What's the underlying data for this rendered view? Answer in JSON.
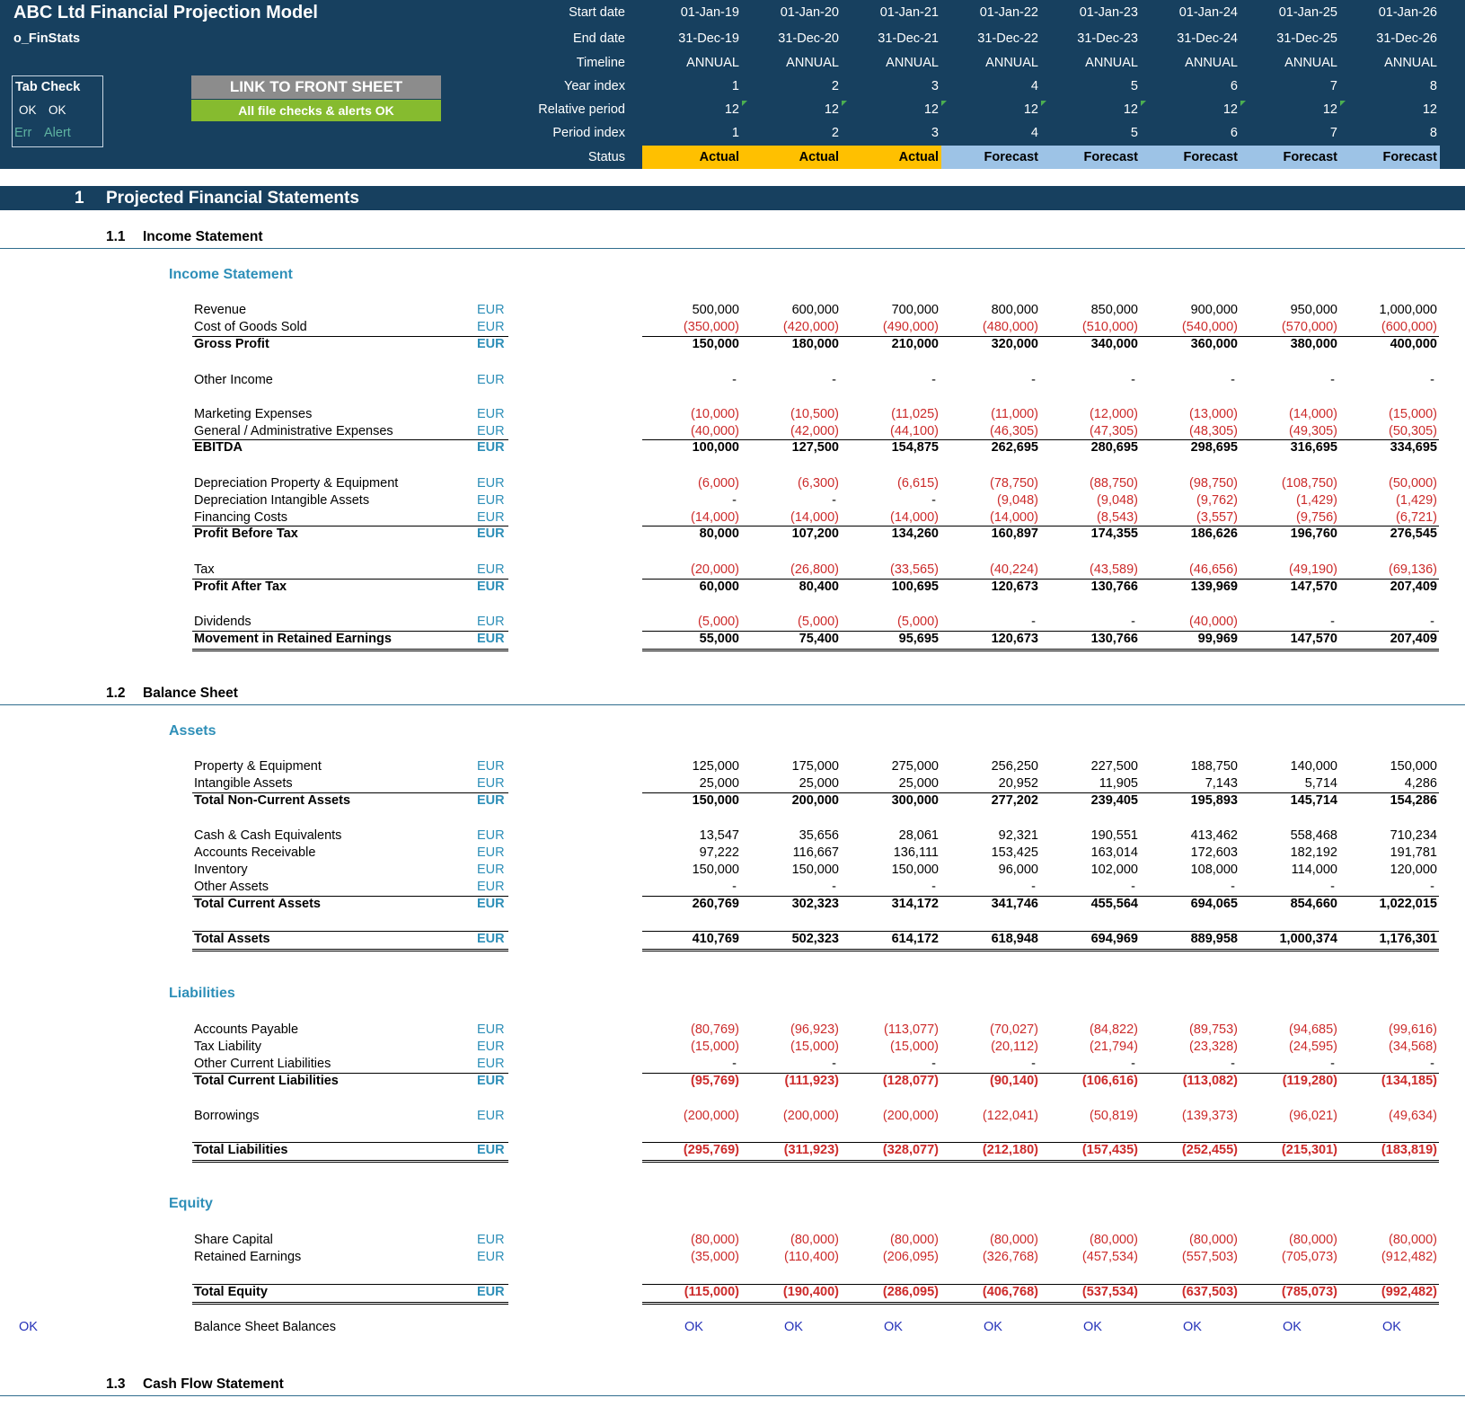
{
  "header": {
    "title": "ABC Ltd Financial Projection Model",
    "sheet_name": "o_FinStats",
    "tab_check": {
      "label": "Tab Check",
      "ok1": "OK",
      "ok2": "OK",
      "err": "Err",
      "alert": "Alert"
    },
    "link_button": "LINK TO FRONT SHEET",
    "checks_status": "All file checks & alerts OK",
    "row_labels": [
      "Start date",
      "End date",
      "Timeline",
      "Year index",
      "Relative period",
      "Period index",
      "Status"
    ],
    "start_dates": [
      "01-Jan-19",
      "01-Jan-20",
      "01-Jan-21",
      "01-Jan-22",
      "01-Jan-23",
      "01-Jan-24",
      "01-Jan-25",
      "01-Jan-26"
    ],
    "end_dates": [
      "31-Dec-19",
      "31-Dec-20",
      "31-Dec-21",
      "31-Dec-22",
      "31-Dec-23",
      "31-Dec-24",
      "31-Dec-25",
      "31-Dec-26"
    ],
    "timeline": [
      "ANNUAL",
      "ANNUAL",
      "ANNUAL",
      "ANNUAL",
      "ANNUAL",
      "ANNUAL",
      "ANNUAL",
      "ANNUAL"
    ],
    "year_index": [
      "1",
      "2",
      "3",
      "4",
      "5",
      "6",
      "7",
      "8"
    ],
    "relative_period": [
      "12",
      "12",
      "12",
      "12",
      "12",
      "12",
      "12",
      "12"
    ],
    "period_index": [
      "1",
      "2",
      "3",
      "4",
      "5",
      "6",
      "7",
      "8"
    ],
    "status": [
      "Actual",
      "Actual",
      "Actual",
      "Forecast",
      "Forecast",
      "Forecast",
      "Forecast",
      "Forecast"
    ]
  },
  "colors": {
    "header_bg": "#17405f",
    "actual": "#ffc000",
    "forecast": "#9dc3e6",
    "negative": "#cc2b2b",
    "unit": "#2e8fb8",
    "ok": "#2431b8",
    "button_grey": "#8c8c8c",
    "button_green": "#86bb2f"
  },
  "section": {
    "number": "1",
    "title": "Projected Financial Statements"
  },
  "income": {
    "sub_number": "1.1",
    "sub_title": "Income Statement",
    "group": "Income Statement",
    "rows": [
      {
        "label": "Revenue",
        "unit": "EUR",
        "values": [
          "500,000",
          "600,000",
          "700,000",
          "800,000",
          "850,000",
          "900,000",
          "950,000",
          "1,000,000"
        ]
      },
      {
        "label": "Cost of Goods Sold",
        "unit": "EUR",
        "values": [
          "(350,000)",
          "(420,000)",
          "(490,000)",
          "(480,000)",
          "(510,000)",
          "(540,000)",
          "(570,000)",
          "(600,000)"
        ]
      },
      {
        "label": "Gross Profit",
        "unit": "EUR",
        "values": [
          "150,000",
          "180,000",
          "210,000",
          "320,000",
          "340,000",
          "360,000",
          "380,000",
          "400,000"
        ]
      },
      {
        "label": "Other Income",
        "unit": "EUR",
        "values": [
          "-",
          "-",
          "-",
          "-",
          "-",
          "-",
          "-",
          "-"
        ]
      },
      {
        "label": "Marketing Expenses",
        "unit": "EUR",
        "values": [
          "(10,000)",
          "(10,500)",
          "(11,025)",
          "(11,000)",
          "(12,000)",
          "(13,000)",
          "(14,000)",
          "(15,000)"
        ]
      },
      {
        "label": "General / Administrative Expenses",
        "unit": "EUR",
        "values": [
          "(40,000)",
          "(42,000)",
          "(44,100)",
          "(46,305)",
          "(47,305)",
          "(48,305)",
          "(49,305)",
          "(50,305)"
        ]
      },
      {
        "label": "EBITDA",
        "unit": "EUR",
        "values": [
          "100,000",
          "127,500",
          "154,875",
          "262,695",
          "280,695",
          "298,695",
          "316,695",
          "334,695"
        ]
      },
      {
        "label": "Depreciation Property & Equipment",
        "unit": "EUR",
        "values": [
          "(6,000)",
          "(6,300)",
          "(6,615)",
          "(78,750)",
          "(88,750)",
          "(98,750)",
          "(108,750)",
          "(50,000)"
        ]
      },
      {
        "label": "Depreciation Intangible Assets",
        "unit": "EUR",
        "values": [
          "-",
          "-",
          "-",
          "(9,048)",
          "(9,048)",
          "(9,762)",
          "(1,429)",
          "(1,429)"
        ]
      },
      {
        "label": "Financing Costs",
        "unit": "EUR",
        "values": [
          "(14,000)",
          "(14,000)",
          "(14,000)",
          "(14,000)",
          "(8,543)",
          "(3,557)",
          "(9,756)",
          "(6,721)"
        ]
      },
      {
        "label": "Profit Before Tax",
        "unit": "EUR",
        "values": [
          "80,000",
          "107,200",
          "134,260",
          "160,897",
          "174,355",
          "186,626",
          "196,760",
          "276,545"
        ]
      },
      {
        "label": "Tax",
        "unit": "EUR",
        "values": [
          "(20,000)",
          "(26,800)",
          "(33,565)",
          "(40,224)",
          "(43,589)",
          "(46,656)",
          "(49,190)",
          "(69,136)"
        ]
      },
      {
        "label": "Profit After Tax",
        "unit": "EUR",
        "values": [
          "60,000",
          "80,400",
          "100,695",
          "120,673",
          "130,766",
          "139,969",
          "147,570",
          "207,409"
        ]
      },
      {
        "label": "Dividends",
        "unit": "EUR",
        "values": [
          "(5,000)",
          "(5,000)",
          "(5,000)",
          "-",
          "-",
          "(40,000)",
          "-",
          "-"
        ]
      },
      {
        "label": "Movement in Retained Earnings",
        "unit": "EUR",
        "values": [
          "55,000",
          "75,400",
          "95,695",
          "120,673",
          "130,766",
          "99,969",
          "147,570",
          "207,409"
        ]
      }
    ]
  },
  "balance": {
    "sub_number": "1.2",
    "sub_title": "Balance Sheet",
    "assets_group": "Assets",
    "liabilities_group": "Liabilities",
    "equity_group": "Equity",
    "rows": [
      {
        "label": "Property & Equipment",
        "unit": "EUR",
        "values": [
          "125,000",
          "175,000",
          "275,000",
          "256,250",
          "227,500",
          "188,750",
          "140,000",
          "150,000"
        ]
      },
      {
        "label": "Intangible Assets",
        "unit": "EUR",
        "values": [
          "25,000",
          "25,000",
          "25,000",
          "20,952",
          "11,905",
          "7,143",
          "5,714",
          "4,286"
        ]
      },
      {
        "label": "Total Non-Current Assets",
        "unit": "EUR",
        "values": [
          "150,000",
          "200,000",
          "300,000",
          "277,202",
          "239,405",
          "195,893",
          "145,714",
          "154,286"
        ]
      },
      {
        "label": "Cash & Cash Equivalents",
        "unit": "EUR",
        "values": [
          "13,547",
          "35,656",
          "28,061",
          "92,321",
          "190,551",
          "413,462",
          "558,468",
          "710,234"
        ]
      },
      {
        "label": "Accounts Receivable",
        "unit": "EUR",
        "values": [
          "97,222",
          "116,667",
          "136,111",
          "153,425",
          "163,014",
          "172,603",
          "182,192",
          "191,781"
        ]
      },
      {
        "label": "Inventory",
        "unit": "EUR",
        "values": [
          "150,000",
          "150,000",
          "150,000",
          "96,000",
          "102,000",
          "108,000",
          "114,000",
          "120,000"
        ]
      },
      {
        "label": "Other Assets",
        "unit": "EUR",
        "values": [
          "-",
          "-",
          "-",
          "-",
          "-",
          "-",
          "-",
          "-"
        ]
      },
      {
        "label": "Total Current Assets",
        "unit": "EUR",
        "values": [
          "260,769",
          "302,323",
          "314,172",
          "341,746",
          "455,564",
          "694,065",
          "854,660",
          "1,022,015"
        ]
      },
      {
        "label": "Total Assets",
        "unit": "EUR",
        "values": [
          "410,769",
          "502,323",
          "614,172",
          "618,948",
          "694,969",
          "889,958",
          "1,000,374",
          "1,176,301"
        ]
      },
      {
        "label": "Accounts Payable",
        "unit": "EUR",
        "values": [
          "(80,769)",
          "(96,923)",
          "(113,077)",
          "(70,027)",
          "(84,822)",
          "(89,753)",
          "(94,685)",
          "(99,616)"
        ]
      },
      {
        "label": "Tax Liability",
        "unit": "EUR",
        "values": [
          "(15,000)",
          "(15,000)",
          "(15,000)",
          "(20,112)",
          "(21,794)",
          "(23,328)",
          "(24,595)",
          "(34,568)"
        ]
      },
      {
        "label": "Other Current Liabilities",
        "unit": "EUR",
        "values": [
          "-",
          "-",
          "-",
          "-",
          "-",
          "-",
          "-",
          "-"
        ]
      },
      {
        "label": "Total Current Liabilities",
        "unit": "EUR",
        "values": [
          "(95,769)",
          "(111,923)",
          "(128,077)",
          "(90,140)",
          "(106,616)",
          "(113,082)",
          "(119,280)",
          "(134,185)"
        ]
      },
      {
        "label": "Borrowings",
        "unit": "EUR",
        "values": [
          "(200,000)",
          "(200,000)",
          "(200,000)",
          "(122,041)",
          "(50,819)",
          "(139,373)",
          "(96,021)",
          "(49,634)"
        ]
      },
      {
        "label": "Total Liabilities",
        "unit": "EUR",
        "values": [
          "(295,769)",
          "(311,923)",
          "(328,077)",
          "(212,180)",
          "(157,435)",
          "(252,455)",
          "(215,301)",
          "(183,819)"
        ]
      },
      {
        "label": "Share Capital",
        "unit": "EUR",
        "values": [
          "(80,000)",
          "(80,000)",
          "(80,000)",
          "(80,000)",
          "(80,000)",
          "(80,000)",
          "(80,000)",
          "(80,000)"
        ]
      },
      {
        "label": "Retained Earnings",
        "unit": "EUR",
        "values": [
          "(35,000)",
          "(110,400)",
          "(206,095)",
          "(326,768)",
          "(457,534)",
          "(557,503)",
          "(705,073)",
          "(912,482)"
        ]
      },
      {
        "label": "Total Equity",
        "unit": "EUR",
        "values": [
          "(115,000)",
          "(190,400)",
          "(286,095)",
          "(406,768)",
          "(537,534)",
          "(637,503)",
          "(785,073)",
          "(992,482)"
        ]
      }
    ],
    "check": {
      "flag": "OK",
      "label": "Balance Sheet Balances",
      "values": [
        "OK",
        "OK",
        "OK",
        "OK",
        "OK",
        "OK",
        "OK",
        "OK"
      ]
    }
  },
  "cashflow": {
    "sub_number": "1.3",
    "sub_title": "Cash Flow Statement"
  }
}
